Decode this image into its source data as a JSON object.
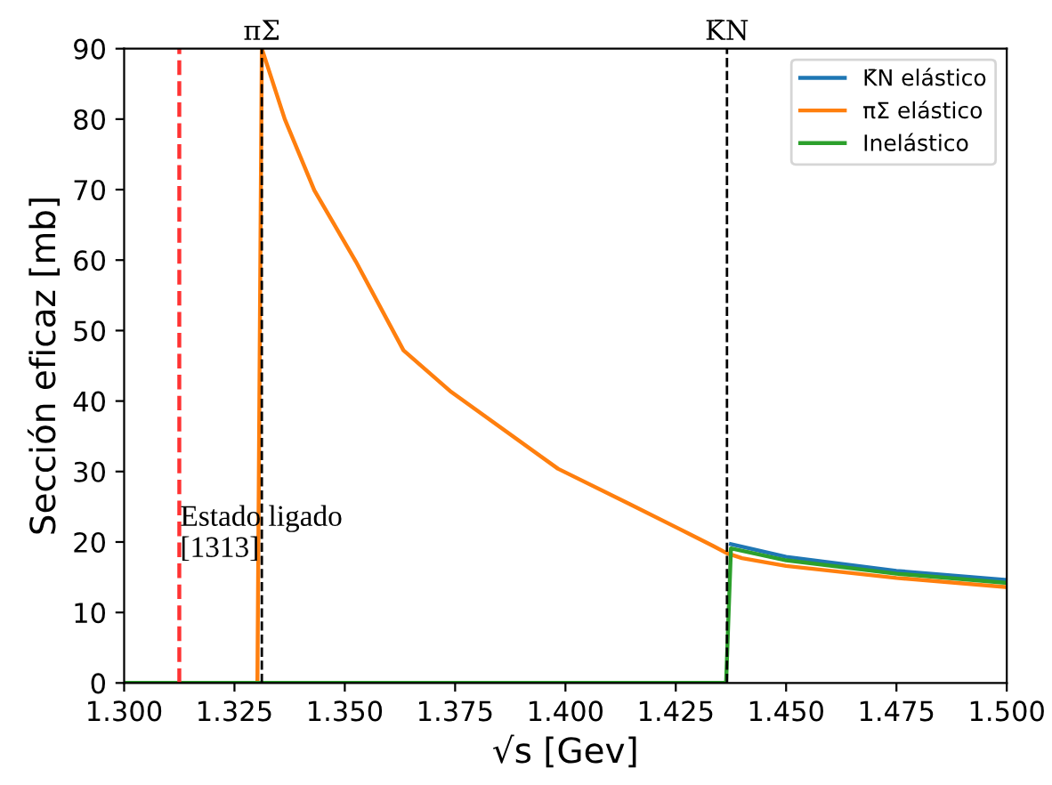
{
  "chart_data": {
    "type": "line",
    "xlabel": "√s [Gev]",
    "ylabel": "Sección eficaz [mb]",
    "xlim": [
      1.3,
      1.5
    ],
    "ylim": [
      0,
      90
    ],
    "xticks": [
      {
        "value": 1.3,
        "label": "1.300"
      },
      {
        "value": 1.325,
        "label": "1.325"
      },
      {
        "value": 1.35,
        "label": "1.350"
      },
      {
        "value": 1.375,
        "label": "1.375"
      },
      {
        "value": 1.4,
        "label": "1.400"
      },
      {
        "value": 1.425,
        "label": "1.425"
      },
      {
        "value": 1.45,
        "label": "1.450"
      },
      {
        "value": 1.475,
        "label": "1.475"
      },
      {
        "value": 1.5,
        "label": "1.500"
      }
    ],
    "yticks": [
      0,
      10,
      20,
      30,
      40,
      50,
      60,
      70,
      80,
      90
    ],
    "grid": false,
    "legend": "top right",
    "marker": "none",
    "line_style": "solid",
    "series": [
      {
        "name": "K̄N elástico",
        "color": "#1f77b4",
        "x": [
          1.4375,
          1.45,
          1.475,
          1.5
        ],
        "values": [
          19.7,
          17.9,
          15.9,
          14.6
        ]
      },
      {
        "name": "πΣ elástico",
        "color": "#ff7f0e",
        "x": [
          1.3,
          1.3302,
          1.3312,
          1.3364,
          1.3431,
          1.3525,
          1.3633,
          1.3741,
          1.3983,
          1.4145,
          1.4279,
          1.4333,
          1.4366,
          1.44,
          1.45,
          1.475,
          1.5
        ],
        "values": [
          0,
          0,
          90,
          80,
          69.9,
          59.8,
          47.2,
          41.3,
          30.4,
          25.4,
          21.2,
          19.5,
          18.4,
          17.7,
          16.6,
          14.9,
          13.6
        ]
      },
      {
        "name": "Inelástico",
        "color": "#2ca02c",
        "x": [
          1.3,
          1.4364,
          1.4375,
          1.45,
          1.475,
          1.5
        ],
        "values": [
          0,
          0,
          19.1,
          17.4,
          15.5,
          14.2
        ]
      }
    ],
    "ref_lines": [
      {
        "axis": "x",
        "value": 1.3125,
        "color": "#ff3333",
        "line_style": "dashed"
      },
      {
        "axis": "x",
        "value": 1.3312,
        "label": "πΣ",
        "color": "#000000",
        "line_style": "dashed"
      },
      {
        "axis": "x",
        "value": 1.4366,
        "label": "K̄N",
        "color": "#000000",
        "line_style": "dashed"
      }
    ],
    "annotations": [
      {
        "text": "Estado ligado\n[1313]",
        "x": 1.3127,
        "y": 17
      }
    ]
  }
}
